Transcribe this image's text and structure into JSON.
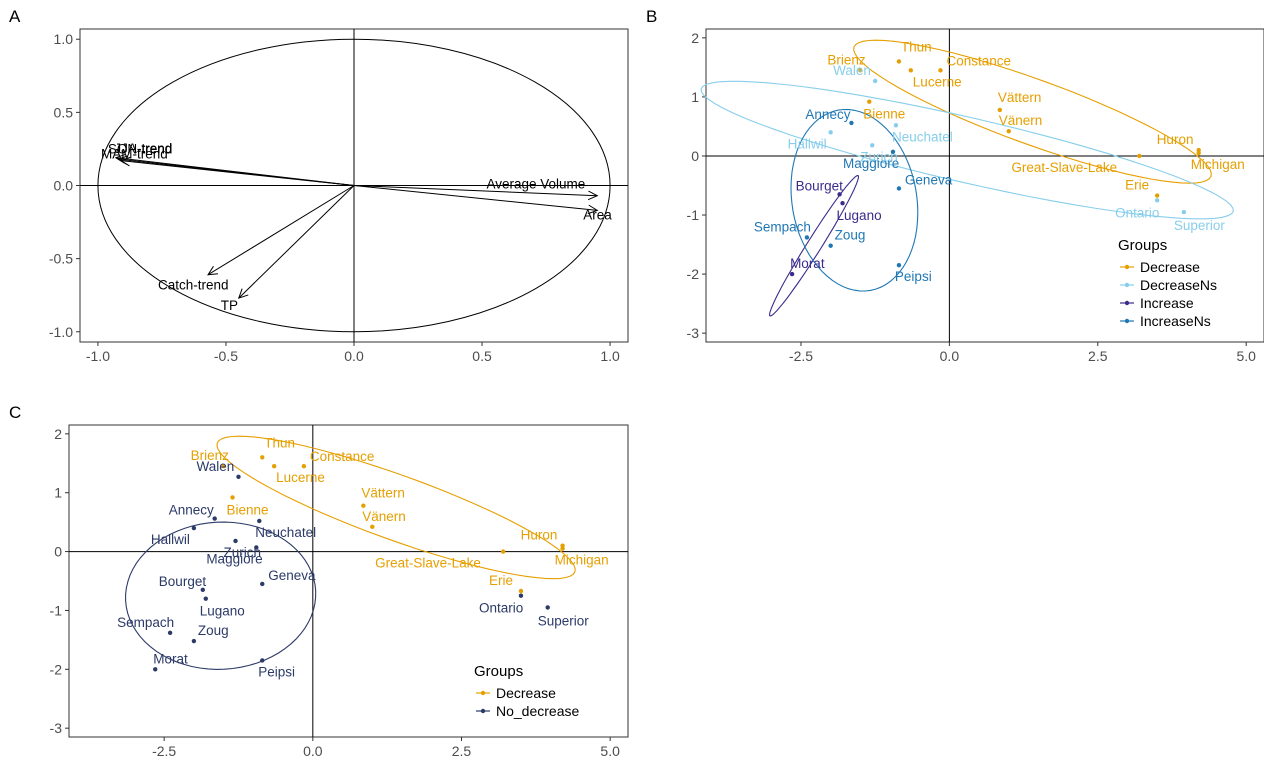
{
  "chart_data": [
    {
      "panel": "A",
      "type": "scatter",
      "subtype": "correlation-circle",
      "title": "",
      "xlabel": "",
      "ylabel": "",
      "xlim": [
        -1.07,
        1.07
      ],
      "ylim": [
        -1.07,
        1.07
      ],
      "xticks": [
        -1.0,
        -0.5,
        0.0,
        0.5,
        1.0
      ],
      "yticks": [
        -1.0,
        -0.5,
        0.0,
        0.5,
        1.0
      ],
      "grid": false,
      "arrows": [
        {
          "label": "SON-trend",
          "x": -0.93,
          "y": 0.19
        },
        {
          "label": "JJA-trend",
          "x": -0.92,
          "y": 0.18
        },
        {
          "label": "MAM-trend",
          "x": -0.91,
          "y": 0.17
        },
        {
          "label": "Average Volume",
          "x": 0.95,
          "y": -0.07
        },
        {
          "label": "Area",
          "x": 0.95,
          "y": -0.17
        },
        {
          "label": "Catch-trend",
          "x": -0.57,
          "y": -0.61
        },
        {
          "label": "TP",
          "x": -0.45,
          "y": -0.77
        }
      ]
    },
    {
      "panel": "B",
      "type": "scatter",
      "title": "",
      "xlabel": "",
      "ylabel": "",
      "xlim": [
        -4.1,
        5.3
      ],
      "ylim": [
        -3.15,
        2.15
      ],
      "xticks": [
        "-2.5",
        "0.0",
        "2.5",
        "5.0"
      ],
      "yticks": [
        "2",
        "1",
        "0",
        "-1",
        "-2",
        "-3"
      ],
      "grid": false,
      "legend": {
        "title": "Groups",
        "position": "right",
        "items": [
          {
            "name": "Decrease",
            "color": "#E69F00"
          },
          {
            "name": "DecreaseNs",
            "color": "#87CEEB"
          },
          {
            "name": "Increase",
            "color": "#3A2C8C"
          },
          {
            "name": "IncreaseNs",
            "color": "#1F77B4"
          }
        ]
      },
      "series": [
        {
          "name": "Decrease",
          "color": "#E69F00",
          "points": [
            {
              "label": "Brienz",
              "x": -1.5,
              "y": 1.45
            },
            {
              "label": "Thun",
              "x": -0.85,
              "y": 1.6
            },
            {
              "label": "Lucerne",
              "x": -0.65,
              "y": 1.45
            },
            {
              "label": "Constance",
              "x": -0.15,
              "y": 1.45
            },
            {
              "label": "Bienne",
              "x": -1.35,
              "y": 0.92
            },
            {
              "label": "Vättern",
              "x": 0.85,
              "y": 0.78
            },
            {
              "label": "Vänern",
              "x": 1.0,
              "y": 0.42
            },
            {
              "label": "Great-Slave-Lake",
              "x": 3.2,
              "y": 0.0
            },
            {
              "label": "Huron",
              "x": 4.2,
              "y": 0.1
            },
            {
              "label": "Michigan",
              "x": 4.2,
              "y": 0.05
            },
            {
              "label": "Erie",
              "x": 3.5,
              "y": -0.67
            }
          ]
        },
        {
          "name": "DecreaseNs",
          "color": "#87CEEB",
          "points": [
            {
              "label": "Walen",
              "x": -1.25,
              "y": 1.27
            },
            {
              "label": "Zurich",
              "x": -1.3,
              "y": 0.18
            },
            {
              "label": "Neuchatel",
              "x": -0.9,
              "y": 0.52
            },
            {
              "label": "Hallwil",
              "x": -2.0,
              "y": 0.4
            },
            {
              "label": "Ontario",
              "x": 3.5,
              "y": -0.75
            },
            {
              "label": "Superior",
              "x": 3.95,
              "y": -0.95
            }
          ]
        },
        {
          "name": "Increase",
          "color": "#3A2C8C",
          "points": [
            {
              "label": "Bourget",
              "x": -1.85,
              "y": -0.65
            },
            {
              "label": "Lugano",
              "x": -1.8,
              "y": -0.8
            },
            {
              "label": "Morat",
              "x": -2.65,
              "y": -2.0
            }
          ]
        },
        {
          "name": "IncreaseNs",
          "color": "#1F77B4",
          "points": [
            {
              "label": "Annecy",
              "x": -1.65,
              "y": 0.56
            },
            {
              "label": "Maggiore",
              "x": -0.95,
              "y": 0.07
            },
            {
              "label": "Geneva",
              "x": -0.85,
              "y": -0.55
            },
            {
              "label": "Sempach",
              "x": -2.4,
              "y": -1.38
            },
            {
              "label": "Zoug",
              "x": -2.0,
              "y": -1.52
            },
            {
              "label": "Peipsi",
              "x": -0.85,
              "y": -1.85
            }
          ]
        }
      ]
    },
    {
      "panel": "C",
      "type": "scatter",
      "title": "",
      "xlabel": "",
      "ylabel": "",
      "xlim": [
        -4.1,
        5.3
      ],
      "ylim": [
        -3.15,
        2.15
      ],
      "xticks": [
        "-2.5",
        "0.0",
        "2.5",
        "5.0"
      ],
      "yticks": [
        "2",
        "1",
        "0",
        "-1",
        "-2",
        "-3"
      ],
      "grid": false,
      "legend": {
        "title": "Groups",
        "position": "inside-bottom-right",
        "items": [
          {
            "name": "Decrease",
            "color": "#E69F00"
          },
          {
            "name": "No_decrease",
            "color": "#2B3A67"
          }
        ]
      },
      "series": [
        {
          "name": "Decrease",
          "color": "#E69F00",
          "points": [
            {
              "label": "Brienz",
              "x": -1.5,
              "y": 1.45
            },
            {
              "label": "Thun",
              "x": -0.85,
              "y": 1.6
            },
            {
              "label": "Lucerne",
              "x": -0.65,
              "y": 1.45
            },
            {
              "label": "Constance",
              "x": -0.15,
              "y": 1.45
            },
            {
              "label": "Bienne",
              "x": -1.35,
              "y": 0.92
            },
            {
              "label": "Vättern",
              "x": 0.85,
              "y": 0.78
            },
            {
              "label": "Vänern",
              "x": 1.0,
              "y": 0.42
            },
            {
              "label": "Great-Slave-Lake",
              "x": 3.2,
              "y": 0.0
            },
            {
              "label": "Huron",
              "x": 4.2,
              "y": 0.1
            },
            {
              "label": "Michigan",
              "x": 4.2,
              "y": 0.05
            },
            {
              "label": "Erie",
              "x": 3.5,
              "y": -0.67
            }
          ]
        },
        {
          "name": "No_decrease",
          "color": "#2B3A67",
          "points": [
            {
              "label": "Walen",
              "x": -1.25,
              "y": 1.27
            },
            {
              "label": "Annecy",
              "x": -1.65,
              "y": 0.56
            },
            {
              "label": "Hallwil",
              "x": -2.0,
              "y": 0.4
            },
            {
              "label": "Zurich",
              "x": -1.3,
              "y": 0.18
            },
            {
              "label": "Neuchatel",
              "x": -0.9,
              "y": 0.52
            },
            {
              "label": "Maggiore",
              "x": -0.95,
              "y": 0.07
            },
            {
              "label": "Geneva",
              "x": -0.85,
              "y": -0.55
            },
            {
              "label": "Bourget",
              "x": -1.85,
              "y": -0.65
            },
            {
              "label": "Lugano",
              "x": -1.8,
              "y": -0.8
            },
            {
              "label": "Sempach",
              "x": -2.4,
              "y": -1.38
            },
            {
              "label": "Zoug",
              "x": -2.0,
              "y": -1.52
            },
            {
              "label": "Morat",
              "x": -2.65,
              "y": -2.0
            },
            {
              "label": "Peipsi",
              "x": -0.85,
              "y": -1.85
            },
            {
              "label": "Ontario",
              "x": 3.5,
              "y": -0.75
            },
            {
              "label": "Superior",
              "x": 3.95,
              "y": -0.95
            }
          ]
        }
      ]
    }
  ]
}
